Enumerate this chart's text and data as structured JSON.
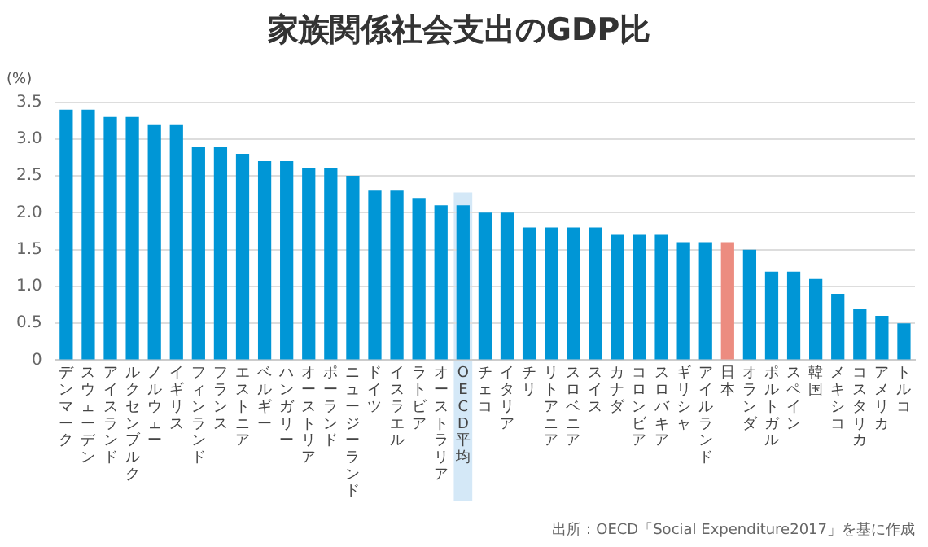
{
  "chart_data": {
    "type": "bar",
    "title": "家族関係社会支出のGDP比",
    "ylabel": "(%)",
    "categories": [
      "デンマーク",
      "スウェーデン",
      "アイスランド",
      "ルクセンブルク",
      "ノルウェー",
      "イギリス",
      "フィンランド",
      "フランス",
      "エストニア",
      "ベルギー",
      "ハンガリー",
      "オーストリア",
      "ポーランド",
      "ニュージーランド",
      "ドイツ",
      "イスラエル",
      "ラトビア",
      "オーストラリア",
      "OECD平均",
      "チェコ",
      "イタリア",
      "チリ",
      "リトアニア",
      "スロベニア",
      "スイス",
      "カナダ",
      "コロンビア",
      "スロバキア",
      "ギリシャ",
      "アイルランド",
      "日本",
      "オランダ",
      "ポルトガル",
      "スペイン",
      "韓国",
      "メキシコ",
      "コスタリカ",
      "アメリカ",
      "トルコ"
    ],
    "values": [
      3.4,
      3.4,
      3.3,
      3.3,
      3.2,
      3.2,
      2.9,
      2.9,
      2.8,
      2.7,
      2.7,
      2.6,
      2.6,
      2.5,
      2.3,
      2.3,
      2.2,
      2.1,
      2.1,
      2.0,
      2.0,
      1.8,
      1.8,
      1.8,
      1.8,
      1.7,
      1.7,
      1.7,
      1.6,
      1.6,
      1.6,
      1.5,
      1.2,
      1.2,
      1.1,
      0.9,
      0.7,
      0.6,
      0.5
    ],
    "colors": [
      "#0096d6",
      "#0096d6",
      "#0096d6",
      "#0096d6",
      "#0096d6",
      "#0096d6",
      "#0096d6",
      "#0096d6",
      "#0096d6",
      "#0096d6",
      "#0096d6",
      "#0096d6",
      "#0096d6",
      "#0096d6",
      "#0096d6",
      "#0096d6",
      "#0096d6",
      "#0096d6",
      "#0096d6",
      "#0096d6",
      "#0096d6",
      "#0096d6",
      "#0096d6",
      "#0096d6",
      "#0096d6",
      "#0096d6",
      "#0096d6",
      "#0096d6",
      "#0096d6",
      "#0096d6",
      "#ec8c80",
      "#0096d6",
      "#0096d6",
      "#0096d6",
      "#0096d6",
      "#0096d6",
      "#0096d6",
      "#0096d6",
      "#0096d6"
    ],
    "ylim": [
      0,
      3.5
    ],
    "yticks": [
      0,
      0.5,
      {
        "value": 1,
        "label": "1.0"
      },
      1.5,
      {
        "value": 2,
        "label": "2.0"
      },
      2.5,
      {
        "value": 3,
        "label": "3.0"
      },
      3.5
    ],
    "bands": [
      {
        "axis": "x",
        "from": "OECD平均",
        "to": "OECD平均",
        "color": "#d4e8f7"
      }
    ],
    "annotations": [
      "出所：OECD「Social Expenditure2017」を基に作成"
    ],
    "grid": "y",
    "legend": false
  }
}
